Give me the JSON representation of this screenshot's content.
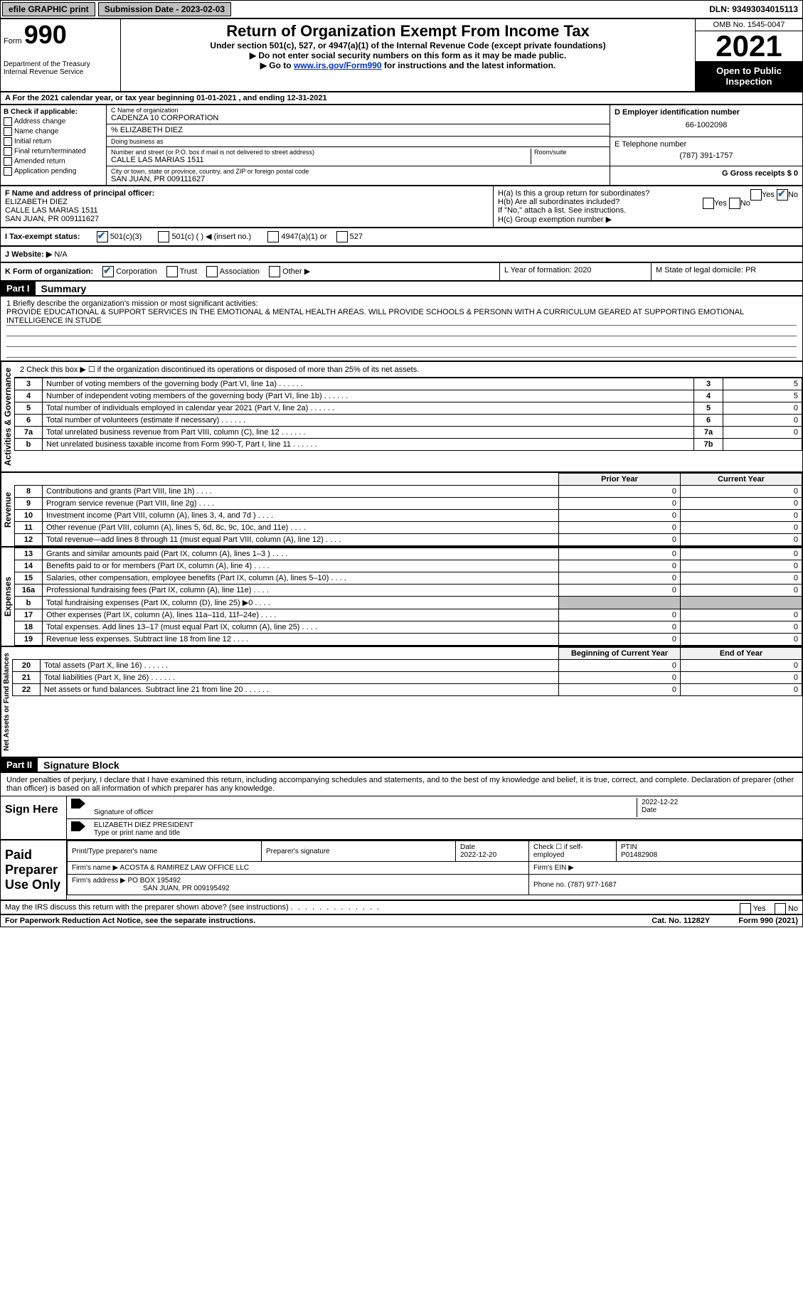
{
  "topbar": {
    "efile_label": "efile GRAPHIC print",
    "submission_label": "Submission Date - 2023-02-03",
    "dln_label": "DLN: 93493034015113"
  },
  "header": {
    "form_word": "Form",
    "form_number": "990",
    "title": "Return of Organization Exempt From Income Tax",
    "subtitle": "Under section 501(c), 527, or 4947(a)(1) of the Internal Revenue Code (except private foundations)",
    "warning": "▶ Do not enter social security numbers on this form as it may be made public.",
    "goto_prefix": "▶ Go to ",
    "goto_link": "www.irs.gov/Form990",
    "goto_suffix": " for instructions and the latest information.",
    "dept": "Department of the Treasury",
    "irs": "Internal Revenue Service",
    "omb": "OMB No. 1545-0047",
    "year": "2021",
    "open_public": "Open to Public Inspection"
  },
  "row_a": "A For the 2021 calendar year, or tax year beginning 01-01-2021   , and ending 12-31-2021",
  "section_b": {
    "b_label": "B Check if applicable:",
    "checks": [
      "Address change",
      "Name change",
      "Initial return",
      "Final return/terminated",
      "Amended return",
      "Application pending"
    ],
    "c_name_label": "C Name of organization",
    "c_name": "CADENZA 10 CORPORATION",
    "care_of": "% ELIZABETH DIEZ",
    "dba_label": "Doing business as",
    "street_label": "Number and street (or P.O. box if mail is not delivered to street address)",
    "room_label": "Room/suite",
    "street": "CALLE LAS MARIAS 1511",
    "city_label": "City or town, state or province, country, and ZIP or foreign postal code",
    "city": "SAN JUAN, PR  009111627",
    "d_label": "D Employer identification number",
    "d_val": "66-1002098",
    "e_label": "E Telephone number",
    "e_val": "(787) 391-1757",
    "g_label": "G Gross receipts $ 0"
  },
  "section_f": {
    "f_label": "F Name and address of principal officer:",
    "f_name": "ELIZABETH DIEZ",
    "f_street": "CALLE LAS MARIAS 1511",
    "f_city": "SAN JUAN, PR  009111627",
    "ha_label": "H(a)  Is this a group return for subordinates?",
    "hb_label": "H(b)  Are all subordinates included?",
    "hb_note": "If \"No,\" attach a list. See instructions.",
    "hc_label": "H(c)  Group exemption number ▶",
    "yes": "Yes",
    "no": "No"
  },
  "row_i": {
    "label": "I   Tax-exempt status:",
    "opts": [
      "501(c)(3)",
      "501(c) (  ) ◀ (insert no.)",
      "4947(a)(1) or",
      "527"
    ]
  },
  "row_j": {
    "label": "J   Website: ▶",
    "val": "N/A"
  },
  "row_k": {
    "label": "K Form of organization:",
    "opts": [
      "Corporation",
      "Trust",
      "Association",
      "Other ▶"
    ],
    "l_label": "L Year of formation: 2020",
    "m_label": "M State of legal domicile: PR"
  },
  "part1": {
    "header": "Part I",
    "title": "Summary",
    "line1_label": "1   Briefly describe the organization's mission or most significant activities:",
    "mission": "PROVIDE EDUCATIONAL & SUPPORT SERVICES IN THE EMOTIONAL & MENTAL HEALTH AREAS. WILL PROVIDE SCHOOLS & PERSONN WITH A CURRICULUM GEARED AT SUPPORTING EMOTIONAL INTELLIGENCE IN STUDE",
    "line2": "2   Check this box ▶ ☐  if the organization discontinued its operations or disposed of more than 25% of its net assets.",
    "vert_activities": "Activities & Governance",
    "vert_revenue": "Revenue",
    "vert_expenses": "Expenses",
    "vert_netassets": "Net Assets or Fund Balances",
    "governance_rows": [
      {
        "n": "3",
        "desc": "Number of voting members of the governing body (Part VI, line 1a)",
        "box": "3",
        "val": "5"
      },
      {
        "n": "4",
        "desc": "Number of independent voting members of the governing body (Part VI, line 1b)",
        "box": "4",
        "val": "5"
      },
      {
        "n": "5",
        "desc": "Total number of individuals employed in calendar year 2021 (Part V, line 2a)",
        "box": "5",
        "val": "0"
      },
      {
        "n": "6",
        "desc": "Total number of volunteers (estimate if necessary)",
        "box": "6",
        "val": "0"
      },
      {
        "n": "7a",
        "desc": "Total unrelated business revenue from Part VIII, column (C), line 12",
        "box": "7a",
        "val": "0"
      },
      {
        "n": "b",
        "desc": "Net unrelated business taxable income from Form 990-T, Part I, line 11",
        "box": "7b",
        "val": ""
      }
    ],
    "prior_year": "Prior Year",
    "current_year": "Current Year",
    "revenue_rows": [
      {
        "n": "8",
        "desc": "Contributions and grants (Part VIII, line 1h)",
        "py": "0",
        "cy": "0"
      },
      {
        "n": "9",
        "desc": "Program service revenue (Part VIII, line 2g)",
        "py": "0",
        "cy": "0"
      },
      {
        "n": "10",
        "desc": "Investment income (Part VIII, column (A), lines 3, 4, and 7d )",
        "py": "0",
        "cy": "0"
      },
      {
        "n": "11",
        "desc": "Other revenue (Part VIII, column (A), lines 5, 6d, 8c, 9c, 10c, and 11e)",
        "py": "0",
        "cy": "0"
      },
      {
        "n": "12",
        "desc": "Total revenue—add lines 8 through 11 (must equal Part VIII, column (A), line 12)",
        "py": "0",
        "cy": "0"
      }
    ],
    "expense_rows": [
      {
        "n": "13",
        "desc": "Grants and similar amounts paid (Part IX, column (A), lines 1–3 )",
        "py": "0",
        "cy": "0"
      },
      {
        "n": "14",
        "desc": "Benefits paid to or for members (Part IX, column (A), line 4)",
        "py": "0",
        "cy": "0"
      },
      {
        "n": "15",
        "desc": "Salaries, other compensation, employee benefits (Part IX, column (A), lines 5–10)",
        "py": "0",
        "cy": "0"
      },
      {
        "n": "16a",
        "desc": "Professional fundraising fees (Part IX, column (A), line 11e)",
        "py": "0",
        "cy": "0"
      },
      {
        "n": "b",
        "desc": "Total fundraising expenses (Part IX, column (D), line 25) ▶0",
        "py": "",
        "cy": "",
        "shaded": true
      },
      {
        "n": "17",
        "desc": "Other expenses (Part IX, column (A), lines 11a–11d, 11f–24e)",
        "py": "0",
        "cy": "0"
      },
      {
        "n": "18",
        "desc": "Total expenses. Add lines 13–17 (must equal Part IX, column (A), line 25)",
        "py": "0",
        "cy": "0"
      },
      {
        "n": "19",
        "desc": "Revenue less expenses. Subtract line 18 from line 12",
        "py": "0",
        "cy": "0"
      }
    ],
    "begin_year": "Beginning of Current Year",
    "end_year": "End of Year",
    "netasset_rows": [
      {
        "n": "20",
        "desc": "Total assets (Part X, line 16)",
        "py": "0",
        "cy": "0"
      },
      {
        "n": "21",
        "desc": "Total liabilities (Part X, line 26)",
        "py": "0",
        "cy": "0"
      },
      {
        "n": "22",
        "desc": "Net assets or fund balances. Subtract line 21 from line 20",
        "py": "0",
        "cy": "0"
      }
    ]
  },
  "part2": {
    "header": "Part II",
    "title": "Signature Block",
    "declaration": "Under penalties of perjury, I declare that I have examined this return, including accompanying schedules and statements, and to the best of my knowledge and belief, it is true, correct, and complete. Declaration of preparer (other than officer) is based on all information of which preparer has any knowledge.",
    "sign_here": "Sign Here",
    "sig_officer_label": "Signature of officer",
    "sig_date": "2022-12-22",
    "date_label": "Date",
    "officer_name": "ELIZABETH DIEZ  PRESIDENT",
    "officer_name_label": "Type or print name and title",
    "paid_prep": "Paid Preparer Use Only",
    "prep_name_label": "Print/Type preparer's name",
    "prep_sig_label": "Preparer's signature",
    "prep_date_label": "Date",
    "prep_date": "2022-12-20",
    "prep_check_label": "Check ☐ if self-employed",
    "ptin_label": "PTIN",
    "ptin": "P01482908",
    "firm_name_label": "Firm's name    ▶",
    "firm_name": "ACOSTA & RAMIREZ LAW OFFICE LLC",
    "firm_ein_label": "Firm's EIN ▶",
    "firm_addr_label": "Firm's address ▶",
    "firm_addr1": "PO BOX 195492",
    "firm_addr2": "SAN JUAN, PR  009195492",
    "phone_label": "Phone no. (787) 977-1687",
    "discuss": "May the IRS discuss this return with the preparer shown above? (see instructions)",
    "yes": "Yes",
    "no": "No"
  },
  "footer": {
    "pra": "For Paperwork Reduction Act Notice, see the separate instructions.",
    "cat": "Cat. No. 11282Y",
    "form": "Form 990 (2021)"
  }
}
